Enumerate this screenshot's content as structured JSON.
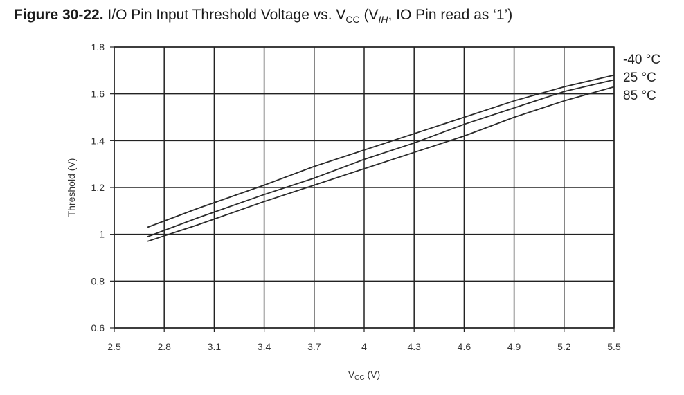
{
  "figure": {
    "label": "Figure 30-22.",
    "text_main": "I/O Pin Input Threshold Voltage vs. V",
    "text_sub_cc": "CC",
    "text_mid": " (V",
    "text_sub_ih": "IH",
    "text_end": ", IO Pin read as ‘1’)"
  },
  "chart_data": {
    "type": "line",
    "xlabel_main": "V",
    "xlabel_sub": "CC",
    "xlabel_unit": " (V)",
    "ylabel": "Threshold (V)",
    "xlim": [
      2.5,
      5.5
    ],
    "ylim": [
      0.6,
      1.8
    ],
    "x_ticks": [
      2.5,
      2.8,
      3.1,
      3.4,
      3.7,
      4,
      4.3,
      4.6,
      4.9,
      5.2,
      5.5
    ],
    "x_tick_labels": [
      "2.5",
      "2.8",
      "3.1",
      "3.4",
      "3.7",
      "4",
      "4.3",
      "4.6",
      "4.9",
      "5.2",
      "5.5"
    ],
    "y_ticks": [
      0.6,
      0.8,
      1,
      1.2,
      1.4,
      1.6,
      1.8
    ],
    "y_tick_labels": [
      "0.6",
      "0.8",
      "1",
      "1.2",
      "1.4",
      "1.6",
      "1.8"
    ],
    "grid": true,
    "legend_placement": "right, at line ends",
    "line_color": "#2a2a2a",
    "series": [
      {
        "name": "-40 °C",
        "x": [
          2.7,
          3.0,
          3.4,
          3.7,
          4.0,
          4.3,
          4.6,
          4.9,
          5.2,
          5.5
        ],
        "y": [
          1.03,
          1.11,
          1.21,
          1.29,
          1.36,
          1.43,
          1.5,
          1.57,
          1.63,
          1.68
        ]
      },
      {
        "name": "25 °C",
        "x": [
          2.7,
          3.0,
          3.4,
          3.7,
          4.0,
          4.3,
          4.6,
          4.9,
          5.2,
          5.5
        ],
        "y": [
          0.99,
          1.07,
          1.17,
          1.24,
          1.32,
          1.39,
          1.47,
          1.54,
          1.61,
          1.66
        ]
      },
      {
        "name": "85 °C",
        "x": [
          2.7,
          3.0,
          3.4,
          3.7,
          4.0,
          4.3,
          4.6,
          4.9,
          5.2,
          5.5
        ],
        "y": [
          0.97,
          1.04,
          1.14,
          1.21,
          1.28,
          1.35,
          1.42,
          1.5,
          1.57,
          1.63
        ]
      }
    ]
  }
}
